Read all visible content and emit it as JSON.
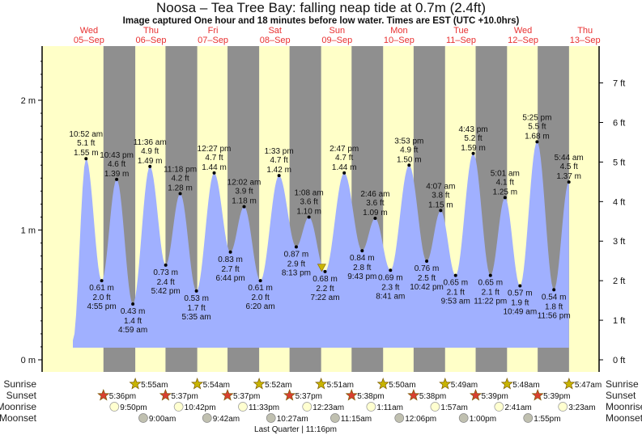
{
  "chart_data": {
    "type": "area",
    "title": "Noosa – Tea Tree Bay: falling  neap tide at 0.7m (2.4ft)",
    "subtitle": "Image captured One hour and 18 minutes before low water. Times are EST (UTC +10.0hrs)",
    "days": [
      {
        "dow": "Wed",
        "date": "05–Sep"
      },
      {
        "dow": "Thu",
        "date": "06–Sep"
      },
      {
        "dow": "Fri",
        "date": "07–Sep"
      },
      {
        "dow": "Sat",
        "date": "08–Sep"
      },
      {
        "dow": "Sun",
        "date": "09–Sep"
      },
      {
        "dow": "Mon",
        "date": "10–Sep"
      },
      {
        "dow": "Tue",
        "date": "11–Sep"
      },
      {
        "dow": "Wed",
        "date": "12–Sep"
      },
      {
        "dow": "Thu",
        "date": "13–Sep"
      }
    ],
    "y_m_ticks": [
      "0 m",
      "1 m",
      "2 m"
    ],
    "y_ft_ticks": [
      "0 ft",
      "1 ft",
      "2 ft",
      "3 ft",
      "4 ft",
      "5 ft",
      "6 ft",
      "7 ft"
    ],
    "ylim_m": [
      0,
      2.4
    ],
    "tides": [
      {
        "day": 0,
        "time": "10:52 am",
        "m": 1.55,
        "ft": "5.1 ft",
        "type": "high"
      },
      {
        "day": 0,
        "time": "4:55 pm",
        "m": 0.61,
        "ft": "2.0 ft",
        "type": "low"
      },
      {
        "day": 0,
        "time": "10:43 pm",
        "m": 1.39,
        "ft": "4.6 ft",
        "type": "high"
      },
      {
        "day": 1,
        "time": "4:59 am",
        "m": 0.43,
        "ft": "1.4 ft",
        "type": "low"
      },
      {
        "day": 1,
        "time": "11:36 am",
        "m": 1.49,
        "ft": "4.9 ft",
        "type": "high"
      },
      {
        "day": 1,
        "time": "5:42 pm",
        "m": 0.73,
        "ft": "2.4 ft",
        "type": "low"
      },
      {
        "day": 1,
        "time": "11:18 pm",
        "m": 1.28,
        "ft": "4.2 ft",
        "type": "high"
      },
      {
        "day": 2,
        "time": "5:35 am",
        "m": 0.53,
        "ft": "1.7 ft",
        "type": "low"
      },
      {
        "day": 2,
        "time": "12:27 pm",
        "m": 1.44,
        "ft": "4.7 ft",
        "type": "high"
      },
      {
        "day": 2,
        "time": "6:44 pm",
        "m": 0.83,
        "ft": "2.7 ft",
        "type": "low"
      },
      {
        "day": 3,
        "time": "12:02 am",
        "m": 1.18,
        "ft": "3.9 ft",
        "type": "high"
      },
      {
        "day": 3,
        "time": "6:20 am",
        "m": 0.61,
        "ft": "2.0 ft",
        "type": "low"
      },
      {
        "day": 3,
        "time": "1:33 pm",
        "m": 1.42,
        "ft": "4.7 ft",
        "type": "high"
      },
      {
        "day": 3,
        "time": "8:13 pm",
        "m": 0.87,
        "ft": "2.9 ft",
        "type": "low"
      },
      {
        "day": 4,
        "time": "1:08 am",
        "m": 1.1,
        "ft": "3.6 ft",
        "type": "high"
      },
      {
        "day": 4,
        "time": "7:22 am",
        "m": 0.68,
        "ft": "2.2 ft",
        "type": "low"
      },
      {
        "day": 4,
        "time": "2:47 pm",
        "m": 1.44,
        "ft": "4.7 ft",
        "type": "high"
      },
      {
        "day": 4,
        "time": "9:43 pm",
        "m": 0.84,
        "ft": "2.8 ft",
        "type": "low"
      },
      {
        "day": 5,
        "time": "2:46 am",
        "m": 1.09,
        "ft": "3.6 ft",
        "type": "high"
      },
      {
        "day": 5,
        "time": "8:41 am",
        "m": 0.69,
        "ft": "2.3 ft",
        "type": "low"
      },
      {
        "day": 5,
        "time": "3:53 pm",
        "m": 1.5,
        "ft": "4.9 ft",
        "type": "high"
      },
      {
        "day": 5,
        "time": "10:42 pm",
        "m": 0.76,
        "ft": "2.5 ft",
        "type": "low"
      },
      {
        "day": 6,
        "time": "4:07 am",
        "m": 1.15,
        "ft": "3.8 ft",
        "type": "high"
      },
      {
        "day": 6,
        "time": "9:53 am",
        "m": 0.65,
        "ft": "2.1 ft",
        "type": "low"
      },
      {
        "day": 6,
        "time": "4:43 pm",
        "m": 1.59,
        "ft": "5.2 ft",
        "type": "high"
      },
      {
        "day": 6,
        "time": "11:22 pm",
        "m": 0.65,
        "ft": "2.1 ft",
        "type": "low"
      },
      {
        "day": 7,
        "time": "5:01 am",
        "m": 1.25,
        "ft": "4.1 ft",
        "type": "high"
      },
      {
        "day": 7,
        "time": "10:49 am",
        "m": 0.57,
        "ft": "1.9 ft",
        "type": "low"
      },
      {
        "day": 7,
        "time": "5:25 pm",
        "m": 1.68,
        "ft": "5.5 ft",
        "type": "high"
      },
      {
        "day": 7,
        "time": "11:56 pm",
        "m": 0.54,
        "ft": "1.8 ft",
        "type": "low"
      },
      {
        "day": 8,
        "time": "5:44 am",
        "m": 1.37,
        "ft": "4.5 ft",
        "type": "high"
      }
    ],
    "current": {
      "day": 4,
      "time": "6:04 am",
      "m": 0.7
    },
    "rows": {
      "sunrise_label": "Sunrise",
      "sunset_label": "Sunset",
      "moonrise_label": "Moonrise",
      "moonset_label": "Moonset",
      "sunrise": [
        {
          "day": 1,
          "time": "5:55am"
        },
        {
          "day": 2,
          "time": "5:54am"
        },
        {
          "day": 3,
          "time": "5:52am"
        },
        {
          "day": 4,
          "time": "5:51am"
        },
        {
          "day": 5,
          "time": "5:50am"
        },
        {
          "day": 6,
          "time": "5:49am"
        },
        {
          "day": 7,
          "time": "5:48am"
        },
        {
          "day": 8,
          "time": "5:47am"
        }
      ],
      "sunset": [
        {
          "day": 0,
          "time": "5:36pm"
        },
        {
          "day": 1,
          "time": "5:37pm"
        },
        {
          "day": 2,
          "time": "5:37pm"
        },
        {
          "day": 3,
          "time": "5:37pm"
        },
        {
          "day": 4,
          "time": "5:38pm"
        },
        {
          "day": 5,
          "time": "5:38pm"
        },
        {
          "day": 6,
          "time": "5:39pm"
        },
        {
          "day": 7,
          "time": "5:39pm"
        }
      ],
      "moonrise": [
        {
          "day": 0,
          "time": "9:50pm"
        },
        {
          "day": 1,
          "time": "10:42pm"
        },
        {
          "day": 2,
          "time": "11:33pm"
        },
        {
          "day": 4,
          "time": "12:23am"
        },
        {
          "day": 5,
          "time": "1:11am"
        },
        {
          "day": 6,
          "time": "1:57am"
        },
        {
          "day": 7,
          "time": "2:41am"
        },
        {
          "day": 8,
          "time": "3:23am"
        }
      ],
      "moonset": [
        {
          "day": 1,
          "time": "9:00am"
        },
        {
          "day": 2,
          "time": "9:42am"
        },
        {
          "day": 3,
          "time": "10:27am"
        },
        {
          "day": 4,
          "time": "11:15am"
        },
        {
          "day": 5,
          "time": "12:06pm"
        },
        {
          "day": 6,
          "time": "1:00pm"
        },
        {
          "day": 7,
          "time": "1:55pm"
        }
      ],
      "moon_phase": "Last Quarter | 11:16pm"
    },
    "colors": {
      "day": "#ffffc8",
      "night": "#8f8f8f",
      "water": "#a0b0ff",
      "daylabel": "#e83030",
      "sun": "#c8b400",
      "sunset": "#d84030",
      "moonrise": "#ffffd0",
      "moonset": "#c0c0b0"
    }
  }
}
